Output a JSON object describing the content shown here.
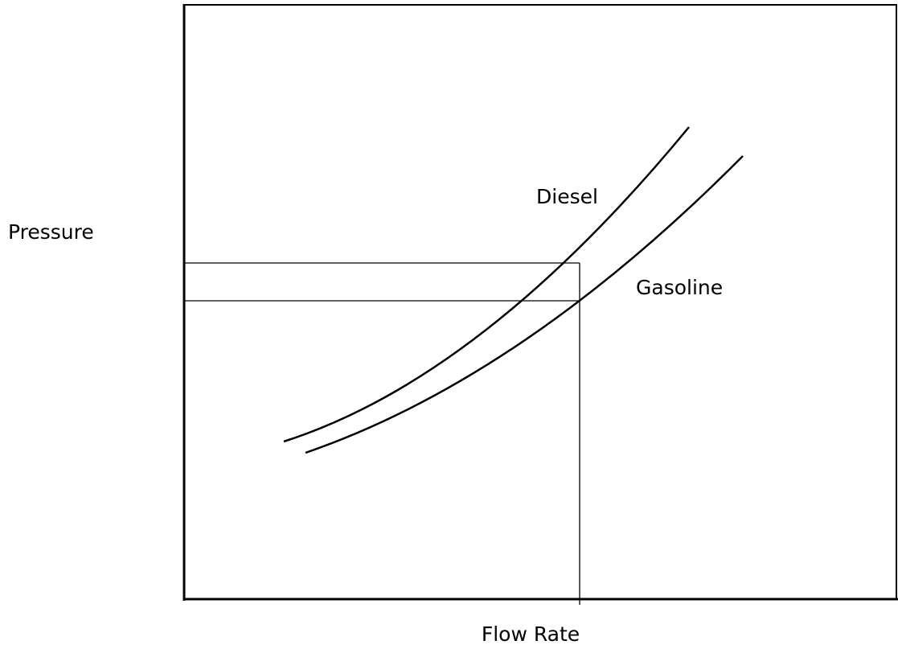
{
  "labels": {
    "y_axis": "Pressure",
    "x_axis": "Flow Rate",
    "diesel": "Diesel",
    "gasoline": "Gasoline"
  }
}
